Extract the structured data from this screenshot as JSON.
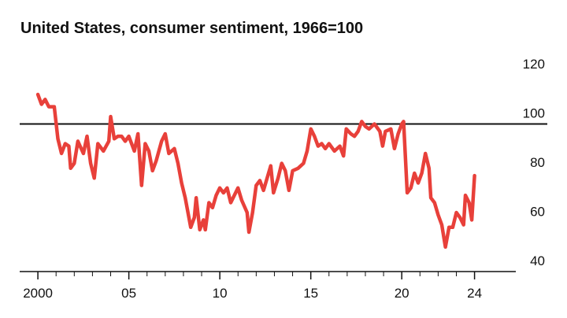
{
  "chart_data": {
    "type": "line",
    "title": "United States, consumer sentiment, 1966=100",
    "color": "#e8403a",
    "reference_line": 100,
    "xlim": [
      1999,
      2028
    ],
    "xticks": [
      {
        "value": 2000,
        "label": "2000"
      },
      {
        "value": 2005,
        "label": "05"
      },
      {
        "value": 2010,
        "label": "10"
      },
      {
        "value": 2015,
        "label": "15"
      },
      {
        "value": 2020,
        "label": "20"
      },
      {
        "value": 2024,
        "label": "24"
      }
    ],
    "x_minor_ticks": [
      2001,
      2002,
      2003,
      2004,
      2006,
      2007,
      2008,
      2009,
      2011,
      2012,
      2013,
      2014,
      2016,
      2017,
      2018,
      2019,
      2021,
      2022,
      2023
    ],
    "ylim": [
      40,
      120
    ],
    "yticks": [
      40,
      60,
      80,
      100,
      120
    ],
    "x": [
      2000.0,
      2000.2,
      2000.4,
      2000.6,
      2000.9,
      2001.1,
      2001.3,
      2001.5,
      2001.7,
      2001.8,
      2002.0,
      2002.2,
      2002.5,
      2002.7,
      2002.9,
      2003.1,
      2003.3,
      2003.6,
      2003.9,
      2004.0,
      2004.2,
      2004.4,
      2004.6,
      2004.8,
      2005.0,
      2005.3,
      2005.5,
      2005.7,
      2005.9,
      2006.1,
      2006.3,
      2006.5,
      2006.8,
      2007.0,
      2007.2,
      2007.5,
      2007.7,
      2007.9,
      2008.1,
      2008.4,
      2008.6,
      2008.7,
      2008.9,
      2009.1,
      2009.2,
      2009.4,
      2009.6,
      2009.8,
      2010.0,
      2010.2,
      2010.4,
      2010.6,
      2010.8,
      2011.0,
      2011.2,
      2011.5,
      2011.6,
      2011.8,
      2012.0,
      2012.2,
      2012.4,
      2012.6,
      2012.8,
      2012.95,
      2013.2,
      2013.4,
      2013.6,
      2013.8,
      2014.0,
      2014.3,
      2014.6,
      2014.8,
      2015.0,
      2015.2,
      2015.4,
      2015.6,
      2015.8,
      2016.0,
      2016.3,
      2016.6,
      2016.8,
      2016.95,
      2017.2,
      2017.4,
      2017.6,
      2017.8,
      2018.0,
      2018.2,
      2018.5,
      2018.8,
      2018.95,
      2019.1,
      2019.4,
      2019.6,
      2019.8,
      2020.0,
      2020.1,
      2020.3,
      2020.5,
      2020.7,
      2020.9,
      2021.1,
      2021.3,
      2021.5,
      2021.6,
      2021.8,
      2022.0,
      2022.2,
      2022.4,
      2022.6,
      2022.8,
      2023.0,
      2023.2,
      2023.4,
      2023.5,
      2023.7,
      2023.85,
      2024.0
    ],
    "values": [
      112,
      108,
      110,
      107,
      107,
      94,
      88,
      92,
      91,
      82,
      84,
      93,
      88,
      95,
      84,
      78,
      92,
      89,
      93,
      103,
      94,
      95,
      95,
      93,
      95,
      89,
      96,
      75,
      92,
      89,
      81,
      85,
      93,
      96,
      88,
      90,
      84,
      76,
      70,
      58,
      62,
      70,
      57,
      61,
      57,
      68,
      66,
      71,
      74,
      72,
      74,
      68,
      71,
      74,
      69,
      64,
      56,
      64,
      75,
      77,
      73,
      78,
      83,
      72,
      78,
      84,
      81,
      73,
      81,
      82,
      84,
      89,
      98,
      95,
      91,
      92,
      90,
      92,
      89,
      91,
      87,
      98,
      96,
      95,
      97,
      101,
      99,
      98,
      100,
      97,
      91,
      97,
      98,
      90,
      96,
      100,
      101,
      72,
      74,
      80,
      76,
      80,
      88,
      82,
      70,
      68,
      63,
      59,
      50,
      58,
      58,
      64,
      62,
      59,
      71,
      68,
      61,
      79
    ]
  }
}
